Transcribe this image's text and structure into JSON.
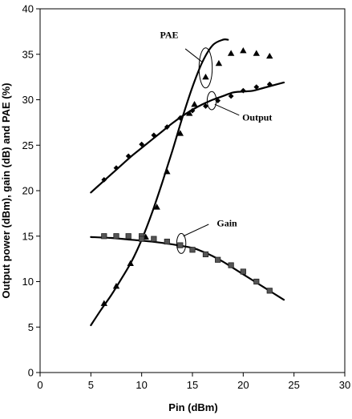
{
  "chart_data": {
    "type": "line",
    "xlabel": "Pin (dBm)",
    "ylabel": "Output power (dBm), gain (dB) and PAE (%)",
    "xlim": [
      0,
      30
    ],
    "ylim": [
      0,
      40
    ],
    "xticks": [
      "0",
      "5",
      "10",
      "15",
      "20",
      "25",
      "30"
    ],
    "yticks": [
      "0",
      "5",
      "10",
      "15",
      "20",
      "25",
      "30",
      "35",
      "40"
    ],
    "grid": false,
    "legend": "none",
    "series": [
      {
        "name": "PAE",
        "marker": "triangle",
        "points": [
          {
            "x": 6.3,
            "y": 7.6
          },
          {
            "x": 7.5,
            "y": 9.5
          },
          {
            "x": 8.9,
            "y": 12.0
          },
          {
            "x": 10.4,
            "y": 14.9
          },
          {
            "x": 11.5,
            "y": 18.2
          },
          {
            "x": 12.5,
            "y": 22.1
          },
          {
            "x": 13.8,
            "y": 26.3
          },
          {
            "x": 14.7,
            "y": 28.5
          },
          {
            "x": 15.2,
            "y": 29.5
          },
          {
            "x": 16.3,
            "y": 32.5
          },
          {
            "x": 17.6,
            "y": 34.0
          },
          {
            "x": 18.8,
            "y": 35.1
          },
          {
            "x": 20.0,
            "y": 35.4
          },
          {
            "x": 21.3,
            "y": 35.1
          },
          {
            "x": 22.6,
            "y": 34.8
          }
        ],
        "fit": [
          {
            "x": 5.0,
            "y": 5.2
          },
          {
            "x": 6.0,
            "y": 6.9
          },
          {
            "x": 7.0,
            "y": 8.5
          },
          {
            "x": 8.0,
            "y": 10.3
          },
          {
            "x": 9.0,
            "y": 12.2
          },
          {
            "x": 10.0,
            "y": 14.6
          },
          {
            "x": 11.0,
            "y": 17.5
          },
          {
            "x": 12.0,
            "y": 20.8
          },
          {
            "x": 13.0,
            "y": 24.3
          },
          {
            "x": 14.0,
            "y": 28.0
          },
          {
            "x": 15.0,
            "y": 31.4
          },
          {
            "x": 16.0,
            "y": 34.2
          },
          {
            "x": 17.0,
            "y": 36.0
          },
          {
            "x": 18.0,
            "y": 36.6
          },
          {
            "x": 18.5,
            "y": 36.6
          }
        ]
      },
      {
        "name": "Output",
        "marker": "diamond",
        "points": [
          {
            "x": 6.3,
            "y": 21.2
          },
          {
            "x": 7.5,
            "y": 22.5
          },
          {
            "x": 8.7,
            "y": 23.8
          },
          {
            "x": 10.0,
            "y": 25.1
          },
          {
            "x": 11.2,
            "y": 26.1
          },
          {
            "x": 12.5,
            "y": 27.0
          },
          {
            "x": 13.8,
            "y": 28.0
          },
          {
            "x": 15.0,
            "y": 28.8
          },
          {
            "x": 16.3,
            "y": 29.3
          },
          {
            "x": 17.5,
            "y": 29.9
          },
          {
            "x": 18.8,
            "y": 30.4
          },
          {
            "x": 20.0,
            "y": 31.0
          },
          {
            "x": 21.3,
            "y": 31.4
          },
          {
            "x": 22.6,
            "y": 31.7
          }
        ],
        "fit": [
          {
            "x": 5.0,
            "y": 19.8
          },
          {
            "x": 6.0,
            "y": 20.8
          },
          {
            "x": 7.0,
            "y": 21.8
          },
          {
            "x": 8.0,
            "y": 22.8
          },
          {
            "x": 9.0,
            "y": 23.8
          },
          {
            "x": 10.0,
            "y": 24.7
          },
          {
            "x": 11.0,
            "y": 25.6
          },
          {
            "x": 12.0,
            "y": 26.5
          },
          {
            "x": 13.0,
            "y": 27.4
          },
          {
            "x": 14.0,
            "y": 28.2
          },
          {
            "x": 15.0,
            "y": 28.9
          },
          {
            "x": 16.0,
            "y": 29.5
          },
          {
            "x": 17.0,
            "y": 30.0
          },
          {
            "x": 18.0,
            "y": 30.4
          },
          {
            "x": 19.0,
            "y": 30.8
          },
          {
            "x": 20.0,
            "y": 30.9
          },
          {
            "x": 21.0,
            "y": 31.0
          },
          {
            "x": 22.0,
            "y": 31.3
          },
          {
            "x": 23.0,
            "y": 31.6
          },
          {
            "x": 24.0,
            "y": 31.9
          }
        ]
      },
      {
        "name": "Gain",
        "marker": "square",
        "points": [
          {
            "x": 6.3,
            "y": 15.0
          },
          {
            "x": 7.5,
            "y": 15.0
          },
          {
            "x": 8.7,
            "y": 15.0
          },
          {
            "x": 10.0,
            "y": 15.0
          },
          {
            "x": 10.0,
            "y": 14.7
          },
          {
            "x": 11.2,
            "y": 14.7
          },
          {
            "x": 12.5,
            "y": 14.4
          },
          {
            "x": 13.8,
            "y": 14.0
          },
          {
            "x": 15.0,
            "y": 13.5
          },
          {
            "x": 16.3,
            "y": 13.0
          },
          {
            "x": 17.5,
            "y": 12.4
          },
          {
            "x": 18.8,
            "y": 11.8
          },
          {
            "x": 20.0,
            "y": 11.1
          },
          {
            "x": 21.3,
            "y": 10.0
          },
          {
            "x": 22.6,
            "y": 9.0
          }
        ],
        "fit": [
          {
            "x": 5.0,
            "y": 14.9
          },
          {
            "x": 7.0,
            "y": 14.8
          },
          {
            "x": 9.0,
            "y": 14.6
          },
          {
            "x": 11.0,
            "y": 14.4
          },
          {
            "x": 13.0,
            "y": 14.1
          },
          {
            "x": 15.0,
            "y": 13.7
          },
          {
            "x": 16.0,
            "y": 13.3
          },
          {
            "x": 17.0,
            "y": 12.8
          },
          {
            "x": 18.0,
            "y": 12.2
          },
          {
            "x": 19.0,
            "y": 11.5
          },
          {
            "x": 20.0,
            "y": 10.8
          },
          {
            "x": 21.0,
            "y": 10.1
          },
          {
            "x": 22.0,
            "y": 9.4
          },
          {
            "x": 23.0,
            "y": 8.7
          },
          {
            "x": 24.0,
            "y": 8.0
          }
        ]
      }
    ],
    "annotations": [
      {
        "text": "PAE",
        "x": 11.8,
        "y": 36.8,
        "ellipse": {
          "cx": 16.3,
          "cy": 33.5,
          "rx": 0.65,
          "ry": 2.2
        },
        "leader": [
          {
            "x": 14.3,
            "y": 35.6
          },
          {
            "x": 15.9,
            "y": 34.2
          }
        ]
      },
      {
        "text": "Output",
        "x": 19.9,
        "y": 27.7,
        "ellipse": {
          "cx": 16.9,
          "cy": 29.9,
          "rx": 0.45,
          "ry": 1.0
        },
        "leader": [
          {
            "x": 17.2,
            "y": 29.5
          },
          {
            "x": 19.6,
            "y": 28.3
          }
        ]
      },
      {
        "text": "Gain",
        "x": 17.4,
        "y": 16.1,
        "ellipse": {
          "cx": 13.9,
          "cy": 14.2,
          "rx": 0.45,
          "ry": 1.1
        },
        "leader": [
          {
            "x": 14.1,
            "y": 15.0
          },
          {
            "x": 16.6,
            "y": 16.3
          }
        ]
      }
    ]
  }
}
